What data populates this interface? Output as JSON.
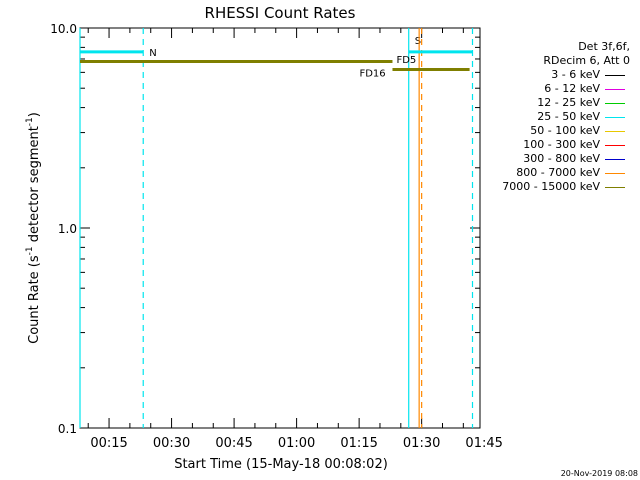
{
  "chart_data": {
    "type": "line",
    "title": "RHESSI Count Rates",
    "ylabel_main": "Count Rate (s",
    "ylabel_sup1": "-1",
    "ylabel_mid": " detector segment",
    "ylabel_sup2": "-1",
    "ylabel_end": ")",
    "xlabel": "Start Time (15-May-18 00:08:02)",
    "yscale": "log",
    "ylim": [
      0.1,
      10.0
    ],
    "y_ticks": [
      {
        "value": 0.1,
        "label": "0.1"
      },
      {
        "value": 1.0,
        "label": "1.0"
      },
      {
        "value": 10.0,
        "label": "10.0"
      }
    ],
    "xlim_minutes": [
      8.03,
      104.0
    ],
    "x_ticks": [
      {
        "minute": 15,
        "label": "00:15"
      },
      {
        "minute": 30,
        "label": "00:30"
      },
      {
        "minute": 45,
        "label": "00:45"
      },
      {
        "minute": 60,
        "label": "01:00"
      },
      {
        "minute": 75,
        "label": "01:15"
      },
      {
        "minute": 90,
        "label": "01:30"
      },
      {
        "minute": 105,
        "label": "01:45"
      }
    ],
    "series": [
      {
        "name": "25 - 50 keV",
        "color": "#00e5ee",
        "segments": [
          {
            "x0": 8.03,
            "x1": 23.2,
            "y": 7.6
          },
          {
            "x0": 86.9,
            "x1": 102.2,
            "y": 7.6
          }
        ]
      },
      {
        "name": "7000 - 15000 keV",
        "color": "#7f7f00",
        "segments": [
          {
            "x0": 8.03,
            "x1": 83.0,
            "y": 6.8
          },
          {
            "x0": 83.0,
            "x1": 101.5,
            "y": 6.2
          }
        ]
      }
    ],
    "markers": [
      {
        "label": "N",
        "x": 23.2,
        "kind": "dashed",
        "color": "#00e5ee",
        "label_y": 7.6,
        "label_color": "#00e5ee"
      },
      {
        "label": "S",
        "x": 86.9,
        "kind": "solid",
        "color": "#00e5ee",
        "label_y": 8.7,
        "label_color": "#d98c00"
      },
      {
        "label": "",
        "x": 102.2,
        "kind": "dashed",
        "color": "#00e5ee"
      },
      {
        "label": "",
        "x": 8.03,
        "kind": "solid",
        "color": "#00e5ee"
      },
      {
        "label": "",
        "x": 89.4,
        "kind": "solid",
        "color": "#ff8800"
      },
      {
        "label": "",
        "x": 90.0,
        "kind": "dashed",
        "color": "#ff8800"
      }
    ],
    "annotations": [
      {
        "text": "FD5",
        "x": 83.0,
        "y": 7.0,
        "color": "#7f7f00",
        "anchor": "start"
      },
      {
        "text": "FD16",
        "x": 82.8,
        "y": 6.0,
        "color": "#7f7f00",
        "anchor": "end"
      }
    ]
  },
  "legend": {
    "header1": "Det 3f,6f,",
    "header2": "RDecim 6, Att 0",
    "items": [
      {
        "label": "3 - 6 keV",
        "color": "#000000"
      },
      {
        "label": "6 - 12 keV",
        "color": "#e000e0"
      },
      {
        "label": "12 - 25 keV",
        "color": "#00cc00"
      },
      {
        "label": "25 - 50 keV",
        "color": "#00e5ee"
      },
      {
        "label": "50 - 100 keV",
        "color": "#e8c800"
      },
      {
        "label": "100 - 300 keV",
        "color": "#ff0000"
      },
      {
        "label": "300 - 800 keV",
        "color": "#0000cc"
      },
      {
        "label": "800 - 7000 keV",
        "color": "#ff8800"
      },
      {
        "label": "7000 - 15000 keV",
        "color": "#7f7f00"
      }
    ]
  },
  "footer_timestamp": "20-Nov-2019 08:08"
}
